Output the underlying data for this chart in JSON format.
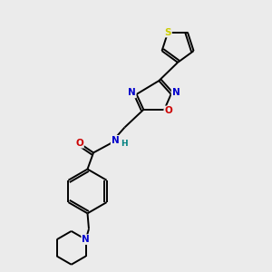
{
  "bg_color": "#ebebeb",
  "atom_colors": {
    "C": "#000000",
    "N": "#0000cc",
    "O": "#cc0000",
    "S": "#cccc00",
    "H": "#008080"
  },
  "bond_color": "#000000",
  "bond_lw": 1.4
}
